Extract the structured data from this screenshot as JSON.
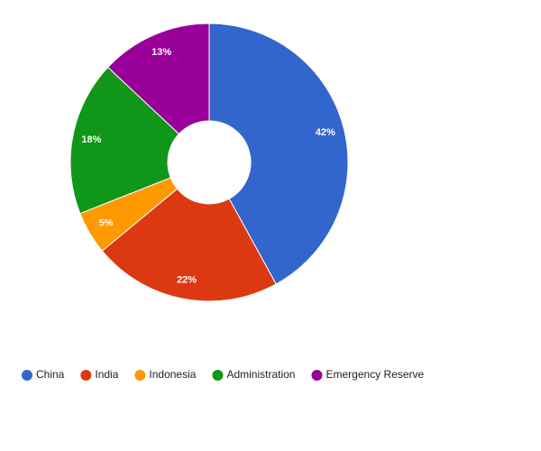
{
  "chart_data": {
    "type": "donut",
    "categories": [
      "China",
      "India",
      "Indonesia",
      "Administration",
      "Emergency Reserve"
    ],
    "values": [
      42,
      22,
      5,
      18,
      13
    ],
    "value_labels": [
      "42%",
      "22%",
      "5%",
      "18%",
      "13%"
    ],
    "colors": [
      "#3366cc",
      "#dc3912",
      "#ff9900",
      "#109618",
      "#990099"
    ],
    "legend": "bottom"
  }
}
